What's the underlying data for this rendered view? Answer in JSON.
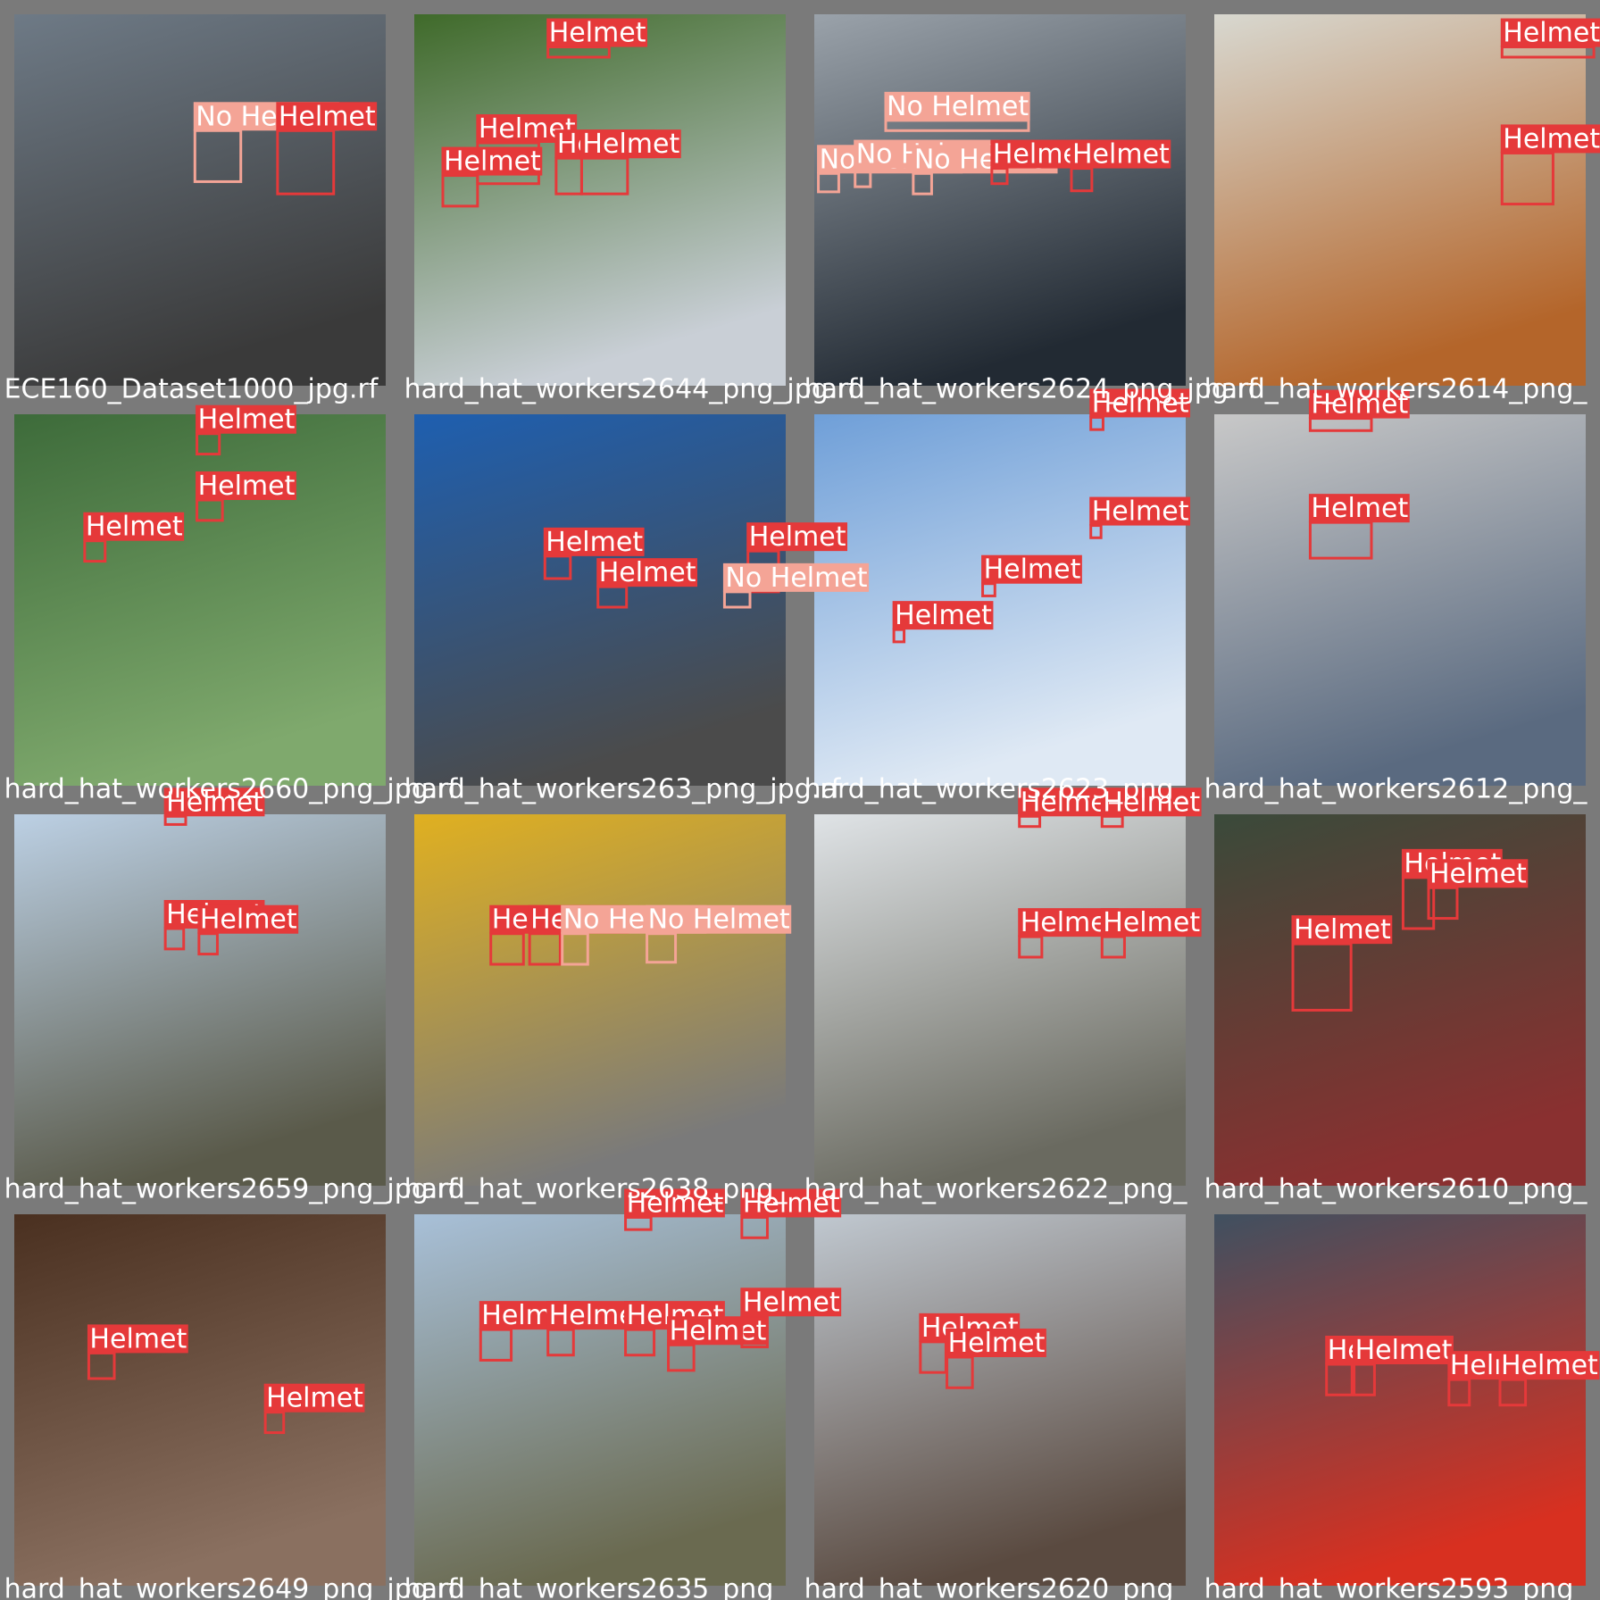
{
  "tiles": [
    {
      "file": "ECE160_Dataset1000_jpg.rf",
      "boxes": [
        "No Helmet",
        "Helmet"
      ]
    },
    {
      "file": "hard_hat_workers2644_png_jpg.rf",
      "boxes": [
        "Helmet",
        "Helmet",
        "Helmet",
        "Helmet",
        "Helmet"
      ]
    },
    {
      "file": "hard_hat_workers2624_png_jpg.rf",
      "boxes": [
        "No Helmet",
        "No Helmet",
        "No Helmet",
        "Helmet",
        "Helmet",
        "No Helmet"
      ]
    },
    {
      "file": "hard_hat_workers2614_png_",
      "boxes": [
        "Helmet",
        "Helmet"
      ]
    },
    {
      "file": "hard_hat_workers2660_png_jpg.rf",
      "boxes": [
        "Helmet",
        "Helmet",
        "Helmet"
      ]
    },
    {
      "file": "hard_hat_workers263_png_jpg.rf",
      "boxes": [
        "Helmet",
        "Helmet",
        "Helmet",
        "No Helmet"
      ]
    },
    {
      "file": "hard_hat_workers2623_png_",
      "boxes": [
        "Helmet",
        "Helmet",
        "Helmet",
        "Helmet"
      ]
    },
    {
      "file": "hard_hat_workers2612_png_",
      "boxes": [
        "Helmet",
        "Helmet"
      ]
    },
    {
      "file": "hard_hat_workers2659_png_jpg.rf",
      "boxes": [
        "Helmet",
        "Helmet",
        "Helmet"
      ]
    },
    {
      "file": "hard_hat_workers2638_png_",
      "boxes": [
        "Helmet",
        "Helmet",
        "No Helmet",
        "No Helmet"
      ]
    },
    {
      "file": "hard_hat_workers2622_png_",
      "boxes": [
        "Helmet",
        "Helmet",
        "Helmet",
        "Helmet"
      ]
    },
    {
      "file": "hard_hat_workers2610_png_",
      "boxes": [
        "Helmet",
        "Helmet",
        "Helmet"
      ]
    },
    {
      "file": "hard_hat_workers2649_png_jpg.rf",
      "boxes": [
        "Helmet",
        "Helmet"
      ]
    },
    {
      "file": "hard_hat_workers2635_png_",
      "boxes": [
        "Helmet",
        "Helmet",
        "Helmet",
        "Helmet",
        "Helmet",
        "Helmet",
        "Helmet"
      ]
    },
    {
      "file": "hard_hat_workers2620_png_",
      "boxes": [
        "Helmet",
        "Helmet"
      ]
    },
    {
      "file": "hard_hat_workers2593_png_",
      "boxes": [
        "Helmet",
        "Helmet",
        "Helmet",
        "Helmet"
      ]
    }
  ]
}
